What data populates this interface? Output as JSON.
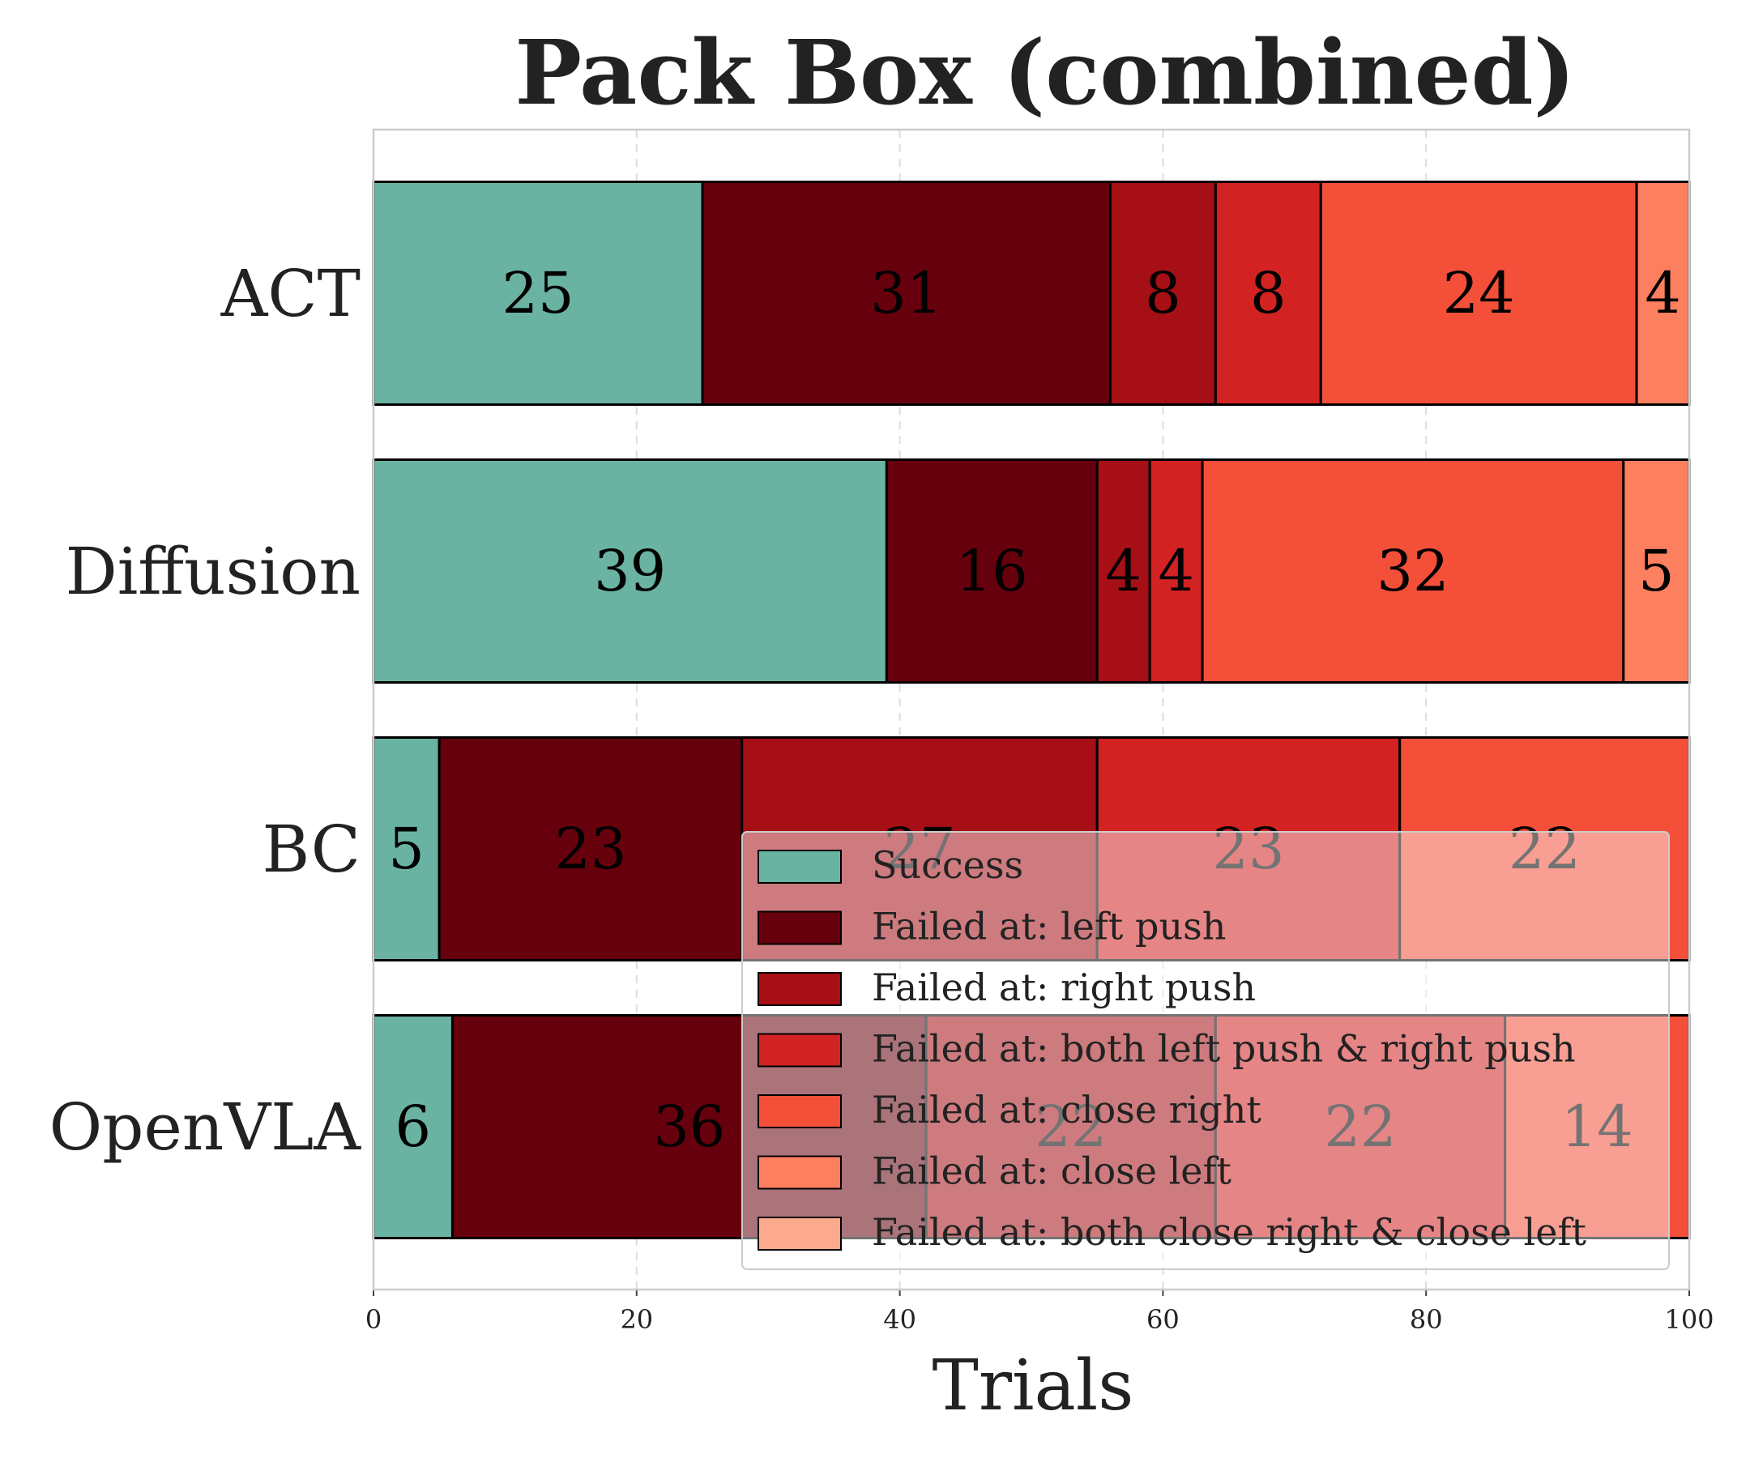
{
  "chart_data": {
    "type": "bar",
    "orientation": "horizontal",
    "stacked": true,
    "title": "Pack Box (combined)",
    "xlabel": "Trials",
    "ylabel": "",
    "xlim": [
      0,
      100
    ],
    "xticks": [
      0,
      20,
      40,
      60,
      80,
      100
    ],
    "grid": "x-dashed",
    "legend_position": "lower-right",
    "categories": [
      "ACT",
      "Diffusion",
      "BC",
      "OpenVLA"
    ],
    "series": [
      {
        "name": "Success",
        "color": "#6ab3a3",
        "values": [
          25,
          39,
          5,
          6
        ]
      },
      {
        "name": "Failed at: left push",
        "color": "#67000d",
        "values": [
          31,
          16,
          23,
          36
        ]
      },
      {
        "name": "Failed at: right push",
        "color": "#a50f15",
        "values": [
          8,
          4,
          27,
          22
        ]
      },
      {
        "name": "Failed at: both left push & right push",
        "color": "#d22222",
        "values": [
          8,
          4,
          23,
          22
        ]
      },
      {
        "name": "Failed at: close right",
        "color": "#f44f39",
        "values": [
          24,
          32,
          22,
          14
        ]
      },
      {
        "name": "Failed at: close left",
        "color": "#fc7f5f",
        "values": [
          4,
          5,
          0,
          0
        ]
      },
      {
        "name": "Failed at: both close right & close left",
        "color": "#fcaa8e",
        "values": [
          0,
          0,
          0,
          0
        ]
      }
    ]
  }
}
